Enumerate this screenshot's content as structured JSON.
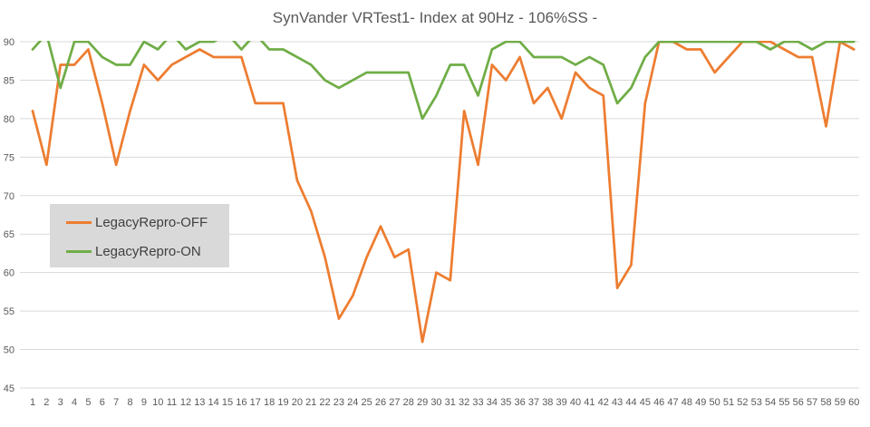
{
  "chart_data": {
    "type": "line",
    "title": "SynVander VRTest1- Index at 90Hz - 106%SS -",
    "xlabel": "",
    "ylabel": "",
    "ylim": [
      45,
      90
    ],
    "yticks": [
      45,
      50,
      55,
      60,
      65,
      70,
      75,
      80,
      85,
      90
    ],
    "grid": true,
    "legend_position": "left-middle",
    "x": [
      1,
      2,
      3,
      4,
      5,
      6,
      7,
      8,
      9,
      10,
      11,
      12,
      13,
      14,
      15,
      16,
      17,
      18,
      19,
      20,
      21,
      22,
      23,
      24,
      25,
      26,
      27,
      28,
      29,
      30,
      31,
      32,
      33,
      34,
      35,
      36,
      37,
      38,
      39,
      40,
      41,
      42,
      43,
      44,
      45,
      46,
      47,
      48,
      49,
      50,
      51,
      52,
      53,
      54,
      55,
      56,
      57,
      58,
      59,
      60
    ],
    "series": [
      {
        "name": "LegacyRepro-OFF",
        "color": "#ed7d31",
        "values": [
          81,
          74,
          87,
          87,
          89,
          82,
          74,
          81,
          87,
          85,
          87,
          88,
          89,
          88,
          88,
          88,
          82,
          82,
          82,
          72,
          68,
          62,
          54,
          57,
          62,
          66,
          62,
          63,
          51,
          60,
          59,
          81,
          74,
          87,
          85,
          88,
          82,
          84,
          80,
          86,
          84,
          83,
          58,
          61,
          82,
          90,
          90,
          89,
          89,
          86,
          88,
          90,
          90,
          90,
          89,
          88,
          88,
          79,
          90,
          89
        ]
      },
      {
        "name": "LegacyRepro-ON",
        "color": "#70ad47",
        "values": [
          89,
          91,
          84,
          90,
          90,
          88,
          87,
          87,
          90,
          89,
          91,
          89,
          90,
          90,
          91,
          89,
          91,
          89,
          89,
          88,
          87,
          85,
          84,
          85,
          86,
          86,
          86,
          86,
          80,
          83,
          87,
          87,
          83,
          89,
          90,
          90,
          88,
          88,
          88,
          87,
          88,
          87,
          82,
          84,
          88,
          90,
          90,
          90,
          90,
          90,
          90,
          90,
          90,
          89,
          90,
          90,
          89,
          90,
          90,
          90
        ]
      }
    ]
  }
}
